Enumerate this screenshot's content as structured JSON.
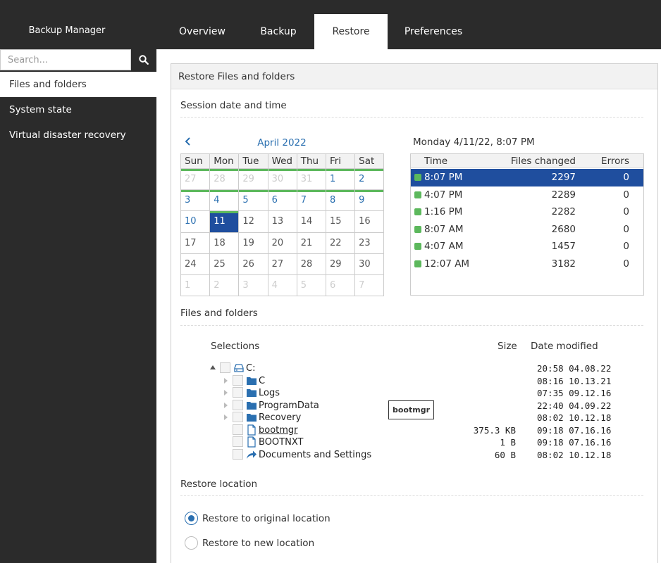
{
  "app": {
    "title": "Backup Manager"
  },
  "tabs": [
    {
      "label": "Overview"
    },
    {
      "label": "Backup"
    },
    {
      "label": "Restore",
      "active": true
    },
    {
      "label": "Preferences"
    }
  ],
  "search": {
    "placeholder": "Search..."
  },
  "sidebar": {
    "items": [
      {
        "label": "Files and folders",
        "active": true
      },
      {
        "label": "System state"
      },
      {
        "label": "Virtual disaster recovery"
      }
    ]
  },
  "panel": {
    "title": "Restore Files and folders"
  },
  "session": {
    "section_title": "Session date and time",
    "calendar": {
      "month": "April 2022",
      "weekdays": [
        "Sun",
        "Mon",
        "Tue",
        "Wed",
        "Thu",
        "Fri",
        "Sat"
      ],
      "weeks": [
        [
          "27",
          "28",
          "29",
          "30",
          "31",
          "1",
          "2"
        ],
        [
          "3",
          "4",
          "5",
          "6",
          "7",
          "8",
          "9"
        ],
        [
          "10",
          "11",
          "12",
          "13",
          "14",
          "15",
          "16"
        ],
        [
          "17",
          "18",
          "19",
          "20",
          "21",
          "22",
          "23"
        ],
        [
          "24",
          "25",
          "26",
          "27",
          "28",
          "29",
          "30"
        ],
        [
          "1",
          "2",
          "3",
          "4",
          "5",
          "6",
          "7"
        ]
      ],
      "selected_day": "11"
    },
    "selected_label": "Monday 4/11/22, 8:07 PM",
    "columns": {
      "time": "Time",
      "files_changed": "Files changed",
      "errors": "Errors"
    },
    "rows": [
      {
        "time": "8:07 PM",
        "files_changed": "2297",
        "errors": "0"
      },
      {
        "time": "4:07 PM",
        "files_changed": "2289",
        "errors": "0"
      },
      {
        "time": "1:16 PM",
        "files_changed": "2282",
        "errors": "0"
      },
      {
        "time": "8:07 AM",
        "files_changed": "2680",
        "errors": "0"
      },
      {
        "time": "4:07 AM",
        "files_changed": "1457",
        "errors": "0"
      },
      {
        "time": "12:07 AM",
        "files_changed": "3182",
        "errors": "0"
      }
    ],
    "status_color": "#5cb85c",
    "selected_color": "#1f4e9e"
  },
  "files": {
    "section_title": "Files and folders",
    "columns": {
      "selections": "Selections",
      "size": "Size",
      "date_modified": "Date modified"
    },
    "tree": [
      {
        "name": "C:",
        "icon": "drive-icon",
        "size": "",
        "modified": "20:58 04.08.22"
      },
      {
        "name": "C",
        "icon": "folder-icon",
        "size": "",
        "modified": "08:16 10.13.21"
      },
      {
        "name": "Logs",
        "icon": "folder-icon",
        "size": "",
        "modified": "07:35 09.12.16"
      },
      {
        "name": "ProgramData",
        "icon": "folder-icon",
        "size": "",
        "modified": "22:40 04.09.22"
      },
      {
        "name": "Recovery",
        "icon": "folder-icon",
        "size": "",
        "modified": "08:02 10.12.18"
      },
      {
        "name": "bootmgr",
        "icon": "file-icon",
        "size": "375.3 KB",
        "modified": "09:18 07.16.16"
      },
      {
        "name": "BOOTNXT",
        "icon": "file-icon",
        "size": "1 B",
        "modified": "09:18 07.16.16"
      },
      {
        "name": "Documents and Settings",
        "icon": "shortcut-arrow-icon",
        "size": "60 B",
        "modified": "08:02 10.12.18"
      }
    ],
    "tooltip": "bootmgr"
  },
  "restore_location": {
    "section_title": "Restore location",
    "options": [
      {
        "label": "Restore to original location",
        "checked": true
      },
      {
        "label": "Restore to new location",
        "checked": false
      }
    ]
  }
}
